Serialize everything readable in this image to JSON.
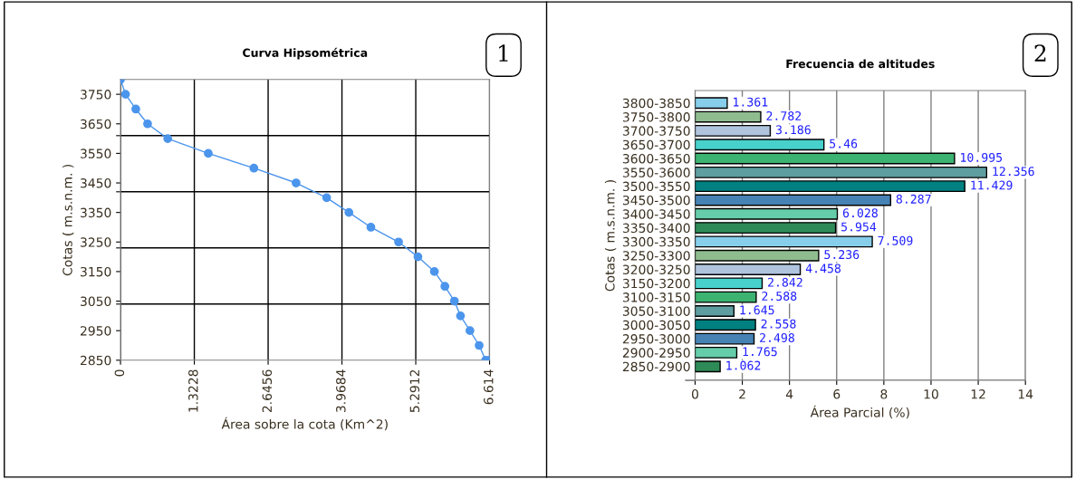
{
  "chart_data": [
    {
      "type": "line",
      "title": "Curva Hipsométrica",
      "xlabel": "Área sobre la cota (Km^2)",
      "ylabel": "Cotas ( m.s.n.m. )",
      "x": [
        0,
        0.09,
        0.274,
        0.485,
        0.846,
        1.573,
        2.39,
        3.146,
        3.694,
        4.093,
        4.487,
        4.983,
        5.33,
        5.625,
        5.813,
        5.984,
        6.093,
        6.262,
        6.427,
        6.544,
        6.614
      ],
      "series": [
        {
          "color": "#4c95ec",
          "values": [
            3800,
            3750,
            3700,
            3650,
            3600,
            3550,
            3500,
            3450,
            3400,
            3350,
            3300,
            3250,
            3200,
            3150,
            3100,
            3050,
            3000,
            2950,
            2900,
            2850,
            2850
          ]
        }
      ],
      "xlim": [
        0,
        6.614
      ],
      "xticks": [
        0,
        1.3228,
        2.6456,
        3.9684,
        5.2912,
        6.614
      ],
      "ylim": [
        2850,
        3800
      ],
      "yticks": [
        2850,
        2950,
        3050,
        3150,
        3250,
        3350,
        3450,
        3550,
        3650,
        3750,
        {
          "value": 3040,
          "label": null
        },
        {
          "value": 3230,
          "label": null
        },
        {
          "value": 3420,
          "label": null
        },
        {
          "value": 3610,
          "label": null
        }
      ],
      "grid": true,
      "marker": "circle",
      "line_style": "solid",
      "legend": false,
      "annotations": [
        "1"
      ]
    },
    {
      "type": "bar",
      "orientation": "horizontal",
      "title": "Frecuencia de altitudes",
      "xlabel": "Área Parcial (%)",
      "ylabel": "Cotas ( m.s.n.m. )",
      "categories": [
        "3800-3850",
        "3750-3800",
        "3700-3750",
        "3650-3700",
        "3600-3650",
        "3550-3600",
        "3500-3550",
        "3450-3500",
        "3400-3450",
        "3350-3400",
        "3300-3350",
        "3250-3300",
        "3200-3250",
        "3150-3200",
        "3100-3150",
        "3050-3100",
        "3000-3050",
        "2950-3000",
        "2900-2950",
        "2850-2900"
      ],
      "values": [
        1.361,
        2.782,
        3.186,
        5.46,
        10.995,
        12.356,
        11.429,
        8.287,
        6.028,
        5.954,
        7.509,
        5.236,
        4.458,
        2.842,
        2.588,
        1.645,
        2.558,
        2.498,
        1.765,
        1.062
      ],
      "colors": [
        "#87ceeb",
        "#8fbc8f",
        "#b0c4de",
        "#48d1cc",
        "#3cb371",
        "#5f9ea0",
        "#008080",
        "#4682b4",
        "#66cdaa",
        "#2e8b57",
        "#87ceeb",
        "#8fbc8f",
        "#b0c4de",
        "#48d1cc",
        "#3cb371",
        "#5f9ea0",
        "#008080",
        "#4682b4",
        "#66cdaa",
        "#2e8b57"
      ],
      "xlim": [
        0,
        14
      ],
      "xticks": [
        0,
        2,
        4,
        6,
        8,
        10,
        12,
        14
      ],
      "data_labels": true,
      "grid": true,
      "legend": false,
      "annotations": [
        "2"
      ]
    }
  ]
}
